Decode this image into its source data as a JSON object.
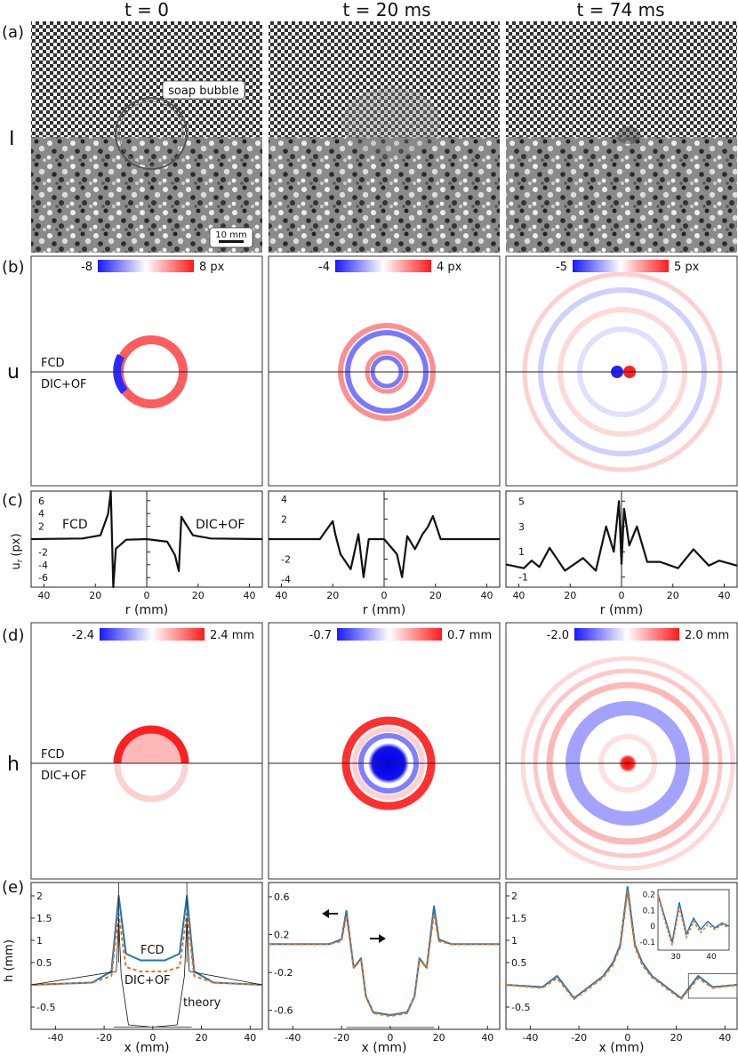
{
  "columns": [
    "t = 0",
    "t = 20 ms",
    "t = 74 ms"
  ],
  "row_labels": {
    "a": "(a)",
    "b": "(b)",
    "c": "(c)",
    "d": "(d)",
    "e": "(e)"
  },
  "var_labels": {
    "I": "I",
    "u": "u",
    "h": "h"
  },
  "annotations": {
    "bubble": "soap bubble",
    "scalebar": "10 mm",
    "fcd": "FCD",
    "dicof": "DIC+OF",
    "theory": "theory"
  },
  "colorbars": {
    "u": [
      {
        "min": "-8",
        "max": "8 px"
      },
      {
        "min": "-4",
        "max": "4 px"
      },
      {
        "min": "-5",
        "max": "5 px"
      }
    ],
    "h": [
      {
        "min": "-2.4",
        "max": "2.4 mm"
      },
      {
        "min": "-0.7",
        "max": "0.7 mm"
      },
      {
        "min": "-2.0",
        "max": "2.0 mm"
      }
    ]
  },
  "colors": {
    "fcd": "#1f77b4",
    "dicof": "#e8711c",
    "neg": "#1a1aff",
    "pos": "#ff1a1a"
  },
  "axis_labels": {
    "ur": "u",
    "ur_sub": "r",
    "ur_unit": "(px)",
    "r": "r (mm)",
    "h": "h (mm)",
    "x": "x (mm)"
  },
  "chart_data": [
    {
      "type": "line",
      "panel": "c",
      "column": "t = 0",
      "xlabel": "r (mm)",
      "ylabel": "u_r (px)",
      "xticks": [
        "40",
        "20",
        "0",
        "20",
        "40"
      ],
      "yticks": [
        "6",
        "4",
        "2",
        "-2",
        "-4",
        "-6"
      ],
      "xlim": [
        -45,
        45
      ],
      "ylim": [
        -7.5,
        7.5
      ],
      "series": [
        {
          "name": "FCD",
          "x": [
            -45,
            -25,
            -18,
            -15,
            -14,
            -13.5,
            -13,
            -12,
            -8,
            0
          ],
          "y": [
            0,
            0.1,
            0.6,
            4,
            7.5,
            0,
            -7.5,
            -1.5,
            -0.1,
            0
          ]
        },
        {
          "name": "DIC+OF",
          "x": [
            0,
            8,
            11,
            12.5,
            13.5,
            15,
            18,
            25,
            45
          ],
          "y": [
            0,
            -0.4,
            -2.5,
            -5,
            3.5,
            2.5,
            0.6,
            0.1,
            0
          ]
        }
      ]
    },
    {
      "type": "line",
      "panel": "c",
      "column": "t = 20 ms",
      "xlabel": "r (mm)",
      "xticks": [
        "40",
        "20",
        "0",
        "20",
        "40"
      ],
      "yticks": [
        "4",
        "2",
        "-2",
        "-4"
      ],
      "xlim": [
        -45,
        45
      ],
      "ylim": [
        -4.8,
        4.8
      ],
      "series": [
        {
          "name": "FCD",
          "x": [
            -45,
            -25,
            -20,
            -19,
            -17,
            -13,
            -10,
            -8,
            -6,
            0
          ],
          "y": [
            0,
            0,
            1.8,
            0.5,
            -1.5,
            -3,
            0.5,
            -3.8,
            0,
            0
          ]
        },
        {
          "name": "DIC+OF",
          "x": [
            0,
            5,
            7,
            9,
            12,
            15,
            17,
            19,
            22,
            45
          ],
          "y": [
            0,
            -1.5,
            -3.8,
            0.3,
            -1,
            0.5,
            1.2,
            2.3,
            0,
            0
          ]
        }
      ]
    },
    {
      "type": "line",
      "panel": "c",
      "column": "t = 74 ms",
      "xlabel": "r (mm)",
      "xticks": [
        "40",
        "20",
        "0",
        "20",
        "40"
      ],
      "yticks": [
        "5",
        "3",
        "1",
        "-1"
      ],
      "xlim": [
        -45,
        45
      ],
      "ylim": [
        -1.8,
        5.8
      ],
      "series": [
        {
          "name": "FCD",
          "x": [
            -45,
            -38,
            -35,
            -32,
            -28,
            -22,
            -15,
            -10,
            -6,
            -3,
            -1,
            0
          ],
          "y": [
            0,
            -0.3,
            0.3,
            -0.2,
            1.3,
            -0.5,
            0.5,
            -0.5,
            3,
            1,
            5,
            0
          ]
        },
        {
          "name": "DIC+OF",
          "x": [
            0,
            1,
            3,
            6,
            10,
            15,
            22,
            28,
            34,
            38,
            45
          ],
          "y": [
            0,
            4.4,
            1.5,
            3,
            0.2,
            0.2,
            -0.3,
            1.2,
            -0.1,
            0.3,
            -0.1
          ]
        }
      ]
    },
    {
      "type": "line",
      "panel": "e",
      "column": "t = 0",
      "xlabel": "x (mm)",
      "ylabel": "h (mm)",
      "xticks": [
        "-40",
        "-20",
        "0",
        "20",
        "40"
      ],
      "yticks": [
        "2",
        "1.5",
        "1",
        "0.5",
        "-0.5"
      ],
      "xlim": [
        -50,
        45
      ],
      "ylim": [
        -1,
        2.3
      ],
      "series": [
        {
          "name": "FCD",
          "x": [
            -50,
            -25,
            -17,
            -14,
            -11,
            -5,
            0,
            5,
            11,
            14,
            17,
            25,
            45
          ],
          "y": [
            0,
            0.05,
            0.3,
            2.0,
            0.7,
            0.55,
            0.55,
            0.55,
            0.7,
            2.0,
            0.3,
            0.05,
            0
          ]
        },
        {
          "name": "DIC+OF",
          "x": [
            -50,
            -25,
            -17,
            -14,
            -11,
            -5,
            0,
            5,
            11,
            14,
            17,
            25,
            45
          ],
          "y": [
            0,
            0.05,
            0.2,
            1.6,
            0.4,
            0.3,
            0.3,
            0.3,
            0.4,
            1.6,
            0.2,
            0.05,
            0
          ]
        },
        {
          "name": "theory",
          "x": [
            -50,
            -15,
            -14,
            -13,
            -10,
            0,
            10,
            13,
            14,
            15,
            45
          ],
          "y": [
            0,
            0.3,
            1.5,
            0.2,
            -0.9,
            -0.95,
            -0.9,
            0.2,
            1.5,
            0.3,
            0
          ]
        }
      ]
    },
    {
      "type": "line",
      "panel": "e",
      "column": "t = 20 ms",
      "xlabel": "x (mm)",
      "xticks": [
        "-40",
        "-20",
        "0",
        "20",
        "40"
      ],
      "yticks": [
        "0.6",
        "0.2",
        "-0.2",
        "-0.6"
      ],
      "xlim": [
        -50,
        45
      ],
      "ylim": [
        -0.8,
        0.75
      ],
      "series": [
        {
          "name": "FCD",
          "x": [
            -50,
            -25,
            -20,
            -18,
            -15,
            -12,
            -10,
            -7,
            0,
            7,
            10,
            12,
            15,
            18,
            20,
            25,
            45
          ],
          "y": [
            0.1,
            0.1,
            0.15,
            0.45,
            -0.15,
            -0.05,
            -0.45,
            -0.62,
            -0.65,
            -0.62,
            -0.45,
            -0.05,
            -0.15,
            0.5,
            0.15,
            0.1,
            0.1
          ]
        },
        {
          "name": "DIC+OF",
          "x": [
            -50,
            -25,
            -20,
            -18,
            -15,
            -12,
            -10,
            -7,
            0,
            7,
            10,
            12,
            15,
            18,
            20,
            25,
            45
          ],
          "y": [
            0.1,
            0.1,
            0.13,
            0.4,
            -0.15,
            -0.07,
            -0.45,
            -0.63,
            -0.66,
            -0.63,
            -0.45,
            -0.07,
            -0.15,
            0.42,
            0.13,
            0.1,
            0.1
          ]
        }
      ]
    },
    {
      "type": "line",
      "panel": "e",
      "column": "t = 74 ms",
      "xlabel": "x (mm)",
      "xticks": [
        "-40",
        "-20",
        "0",
        "20",
        "40"
      ],
      "yticks": [
        "2",
        "1.5",
        "1",
        "0.5",
        "-0.5"
      ],
      "xlim": [
        -50,
        45
      ],
      "ylim": [
        -1,
        2.3
      ],
      "series": [
        {
          "name": "FCD",
          "x": [
            -50,
            -35,
            -29,
            -22,
            -16,
            -10,
            -6,
            -3,
            0,
            3,
            6,
            10,
            16,
            22,
            29,
            35,
            45
          ],
          "y": [
            0,
            -0.05,
            0.2,
            -0.3,
            -0.05,
            0.2,
            0.5,
            0.9,
            2.2,
            0.9,
            0.5,
            0.2,
            -0.05,
            -0.3,
            0.2,
            -0.05,
            0
          ]
        },
        {
          "name": "DIC+OF",
          "x": [
            -50,
            -35,
            -29,
            -22,
            -16,
            -10,
            -6,
            -3,
            0,
            3,
            6,
            10,
            16,
            22,
            29,
            35,
            45
          ],
          "y": [
            0,
            -0.07,
            0.15,
            -0.32,
            -0.08,
            0.17,
            0.45,
            0.85,
            2.1,
            0.85,
            0.45,
            0.17,
            -0.08,
            -0.32,
            0.15,
            -0.07,
            0
          ]
        }
      ]
    },
    {
      "type": "line",
      "panel": "e-inset",
      "column": "t = 74 ms",
      "xticks": [
        "30",
        "40"
      ],
      "yticks": [
        "0.2",
        "0.1",
        "0",
        "-0.1"
      ],
      "xlim": [
        25,
        45
      ],
      "ylim": [
        -0.15,
        0.23
      ],
      "series": [
        {
          "name": "FCD",
          "x": [
            25,
            27,
            29,
            31,
            33,
            35,
            37,
            39,
            41,
            43,
            45
          ],
          "y": [
            0.2,
            0.05,
            -0.1,
            0.15,
            -0.05,
            0.05,
            -0.02,
            0.03,
            -0.01,
            0.02,
            0
          ]
        },
        {
          "name": "DIC+OF",
          "x": [
            25,
            27,
            29,
            31,
            33,
            35,
            37,
            39,
            41,
            43,
            45
          ],
          "y": [
            0.19,
            0.03,
            -0.12,
            0.12,
            -0.07,
            0.03,
            -0.04,
            0.01,
            -0.02,
            0.01,
            -0.01
          ]
        }
      ]
    }
  ]
}
